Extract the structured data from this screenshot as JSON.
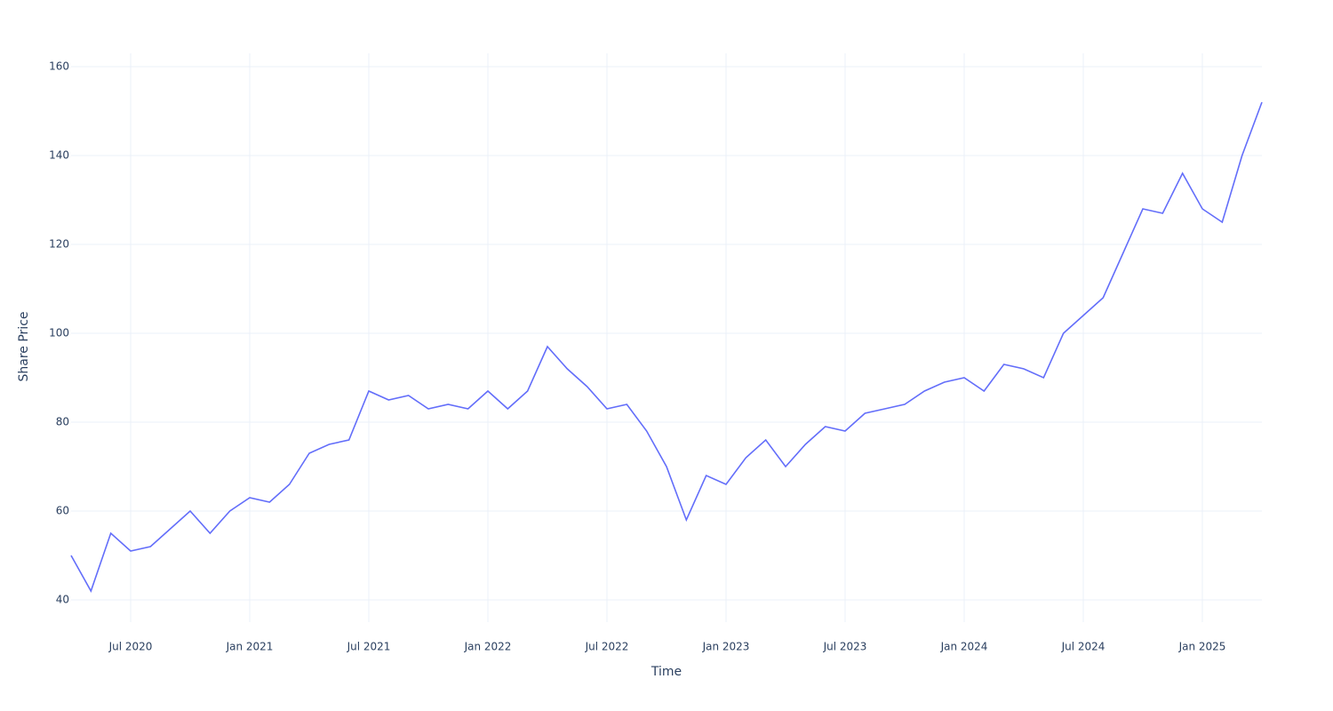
{
  "chart_data": {
    "type": "line",
    "x_label": "Time",
    "y_label": "Share Price",
    "x": [
      "2020-04",
      "2020-05",
      "2020-06",
      "2020-07",
      "2020-08",
      "2020-09",
      "2020-10",
      "2020-11",
      "2020-12",
      "2021-01",
      "2021-02",
      "2021-03",
      "2021-04",
      "2021-05",
      "2021-06",
      "2021-07",
      "2021-08",
      "2021-09",
      "2021-10",
      "2021-11",
      "2021-12",
      "2022-01",
      "2022-02",
      "2022-03",
      "2022-04",
      "2022-05",
      "2022-06",
      "2022-07",
      "2022-08",
      "2022-09",
      "2022-10",
      "2022-11",
      "2022-12",
      "2023-01",
      "2023-02",
      "2023-03",
      "2023-04",
      "2023-05",
      "2023-06",
      "2023-07",
      "2023-08",
      "2023-09",
      "2023-10",
      "2023-11",
      "2023-12",
      "2024-01",
      "2024-02",
      "2024-03",
      "2024-04",
      "2024-05",
      "2024-06",
      "2024-07",
      "2024-08",
      "2024-09",
      "2024-10",
      "2024-11",
      "2024-12",
      "2025-01",
      "2025-02",
      "2025-03",
      "2025-04"
    ],
    "series": [
      {
        "color": "#636efa",
        "values": [
          50,
          42,
          55,
          51,
          52,
          56,
          60,
          55,
          60,
          63,
          62,
          66,
          73,
          75,
          76,
          87,
          85,
          86,
          83,
          84,
          83,
          87,
          83,
          87,
          97,
          92,
          88,
          83,
          84,
          78,
          70,
          58,
          68,
          66,
          72,
          76,
          70,
          75,
          79,
          78,
          82,
          83,
          84,
          87,
          89,
          90,
          87,
          93,
          92,
          90,
          100,
          104,
          108,
          118,
          128,
          127,
          136,
          128,
          125,
          140,
          152
        ]
      }
    ],
    "xlim": [
      "2020-04",
      "2025-04"
    ],
    "xticks": [
      {
        "value": "2020-07",
        "label": "Jul 2020"
      },
      {
        "value": "2021-01",
        "label": "Jan 2021"
      },
      {
        "value": "2021-07",
        "label": "Jul 2021"
      },
      {
        "value": "2022-01",
        "label": "Jan 2022"
      },
      {
        "value": "2022-07",
        "label": "Jul 2022"
      },
      {
        "value": "2023-01",
        "label": "Jan 2023"
      },
      {
        "value": "2023-07",
        "label": "Jul 2023"
      },
      {
        "value": "2024-01",
        "label": "Jan 2024"
      },
      {
        "value": "2024-07",
        "label": "Jul 2024"
      },
      {
        "value": "2025-01",
        "label": "Jan 2025"
      }
    ],
    "ylim": [
      35,
      163
    ],
    "yticks": [
      40,
      60,
      80,
      100,
      120,
      140,
      160
    ],
    "grid": true
  }
}
